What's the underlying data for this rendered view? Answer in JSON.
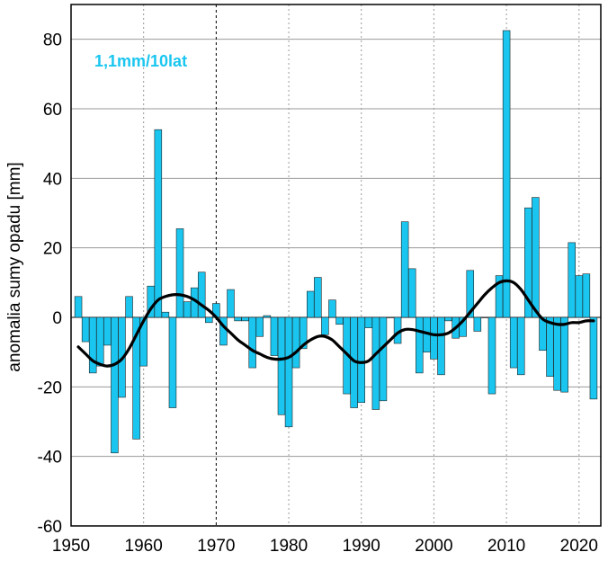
{
  "chart_data": {
    "type": "bar",
    "ylabel": "anomalia sumy opadu [mm]",
    "xlabel": "",
    "annotation": "1,1mm/10lat",
    "xlim": [
      1950,
      2023
    ],
    "ylim": [
      -60,
      90
    ],
    "x_ticks": [
      1950,
      1960,
      1970,
      1980,
      1990,
      2000,
      2010,
      2020
    ],
    "y_ticks": [
      -60,
      -40,
      -20,
      0,
      20,
      40,
      60,
      80
    ],
    "grid": true,
    "bar_color": "#1ac6f0",
    "annotation_color": "#1ac6f0",
    "smooth_color": "#000000",
    "bars": {
      "years": [
        1951,
        1952,
        1953,
        1954,
        1955,
        1956,
        1957,
        1958,
        1959,
        1960,
        1961,
        1962,
        1963,
        1964,
        1965,
        1966,
        1967,
        1968,
        1969,
        1970,
        1971,
        1972,
        1973,
        1974,
        1975,
        1976,
        1977,
        1978,
        1979,
        1980,
        1981,
        1982,
        1983,
        1984,
        1985,
        1986,
        1987,
        1988,
        1989,
        1990,
        1991,
        1992,
        1993,
        1994,
        1995,
        1996,
        1997,
        1998,
        1999,
        2000,
        2001,
        2002,
        2003,
        2004,
        2005,
        2006,
        2007,
        2008,
        2009,
        2010,
        2011,
        2012,
        2013,
        2014,
        2015,
        2016,
        2017,
        2018,
        2019,
        2020,
        2021,
        2022
      ],
      "values": [
        6,
        -7,
        -16,
        -14,
        -8,
        -39,
        -23,
        6,
        -35,
        -14,
        9,
        54,
        1.5,
        -26,
        25.5,
        4.5,
        8.5,
        13,
        -1.5,
        4,
        -8,
        8,
        -1,
        -1,
        -14.5,
        -5.5,
        0.5,
        -11,
        -28,
        -31.5,
        -14.5,
        -9,
        7.5,
        11.5,
        -5,
        5,
        -2,
        -22,
        -26,
        -24.5,
        -3,
        -26.5,
        -24,
        0,
        -7.5,
        27.5,
        14,
        -16,
        -10,
        -12,
        -16.5,
        -1,
        -6,
        -5.5,
        13.5,
        -4,
        0,
        -22,
        12,
        82.5,
        -14.5,
        -16.5,
        31.5,
        34.5,
        -9.5,
        -17,
        -21,
        -21.5,
        21.5,
        12,
        12.5,
        -23.5
      ]
    },
    "smooth_series": {
      "name": "",
      "x": [
        1951,
        1952,
        1953,
        1954,
        1955,
        1956,
        1957,
        1958,
        1959,
        1960,
        1961,
        1962,
        1963,
        1964,
        1965,
        1966,
        1967,
        1968,
        1969,
        1970,
        1971,
        1972,
        1973,
        1974,
        1975,
        1976,
        1977,
        1978,
        1979,
        1980,
        1981,
        1982,
        1983,
        1984,
        1985,
        1986,
        1987,
        1988,
        1989,
        1990,
        1991,
        1992,
        1993,
        1994,
        1995,
        1996,
        1997,
        1998,
        1999,
        2000,
        2001,
        2002,
        2003,
        2004,
        2005,
        2006,
        2007,
        2008,
        2009,
        2010,
        2011,
        2012,
        2013,
        2014,
        2015,
        2016,
        2017,
        2018,
        2019,
        2020,
        2021,
        2022
      ],
      "y": [
        -8.5,
        -10.5,
        -12.5,
        -13.5,
        -14,
        -13.5,
        -12,
        -9,
        -5,
        -1,
        2.5,
        5,
        6,
        6.5,
        6.5,
        6,
        5,
        3.5,
        2,
        0,
        -2.5,
        -4.5,
        -6.5,
        -8,
        -9.5,
        -10.5,
        -11.5,
        -12,
        -12,
        -11.5,
        -10,
        -8,
        -6.5,
        -5.5,
        -5.5,
        -6.5,
        -8.5,
        -10.5,
        -12.5,
        -13,
        -12.5,
        -10.5,
        -8.5,
        -6.5,
        -4.5,
        -3.5,
        -3.5,
        -4,
        -4.5,
        -5,
        -5,
        -4.5,
        -3,
        -1,
        1.5,
        4,
        6.5,
        8.5,
        10,
        10.5,
        10,
        8,
        5,
        2,
        -0.5,
        -1.5,
        -2,
        -2,
        -1.5,
        -1.5,
        -1,
        -1
      ]
    }
  }
}
